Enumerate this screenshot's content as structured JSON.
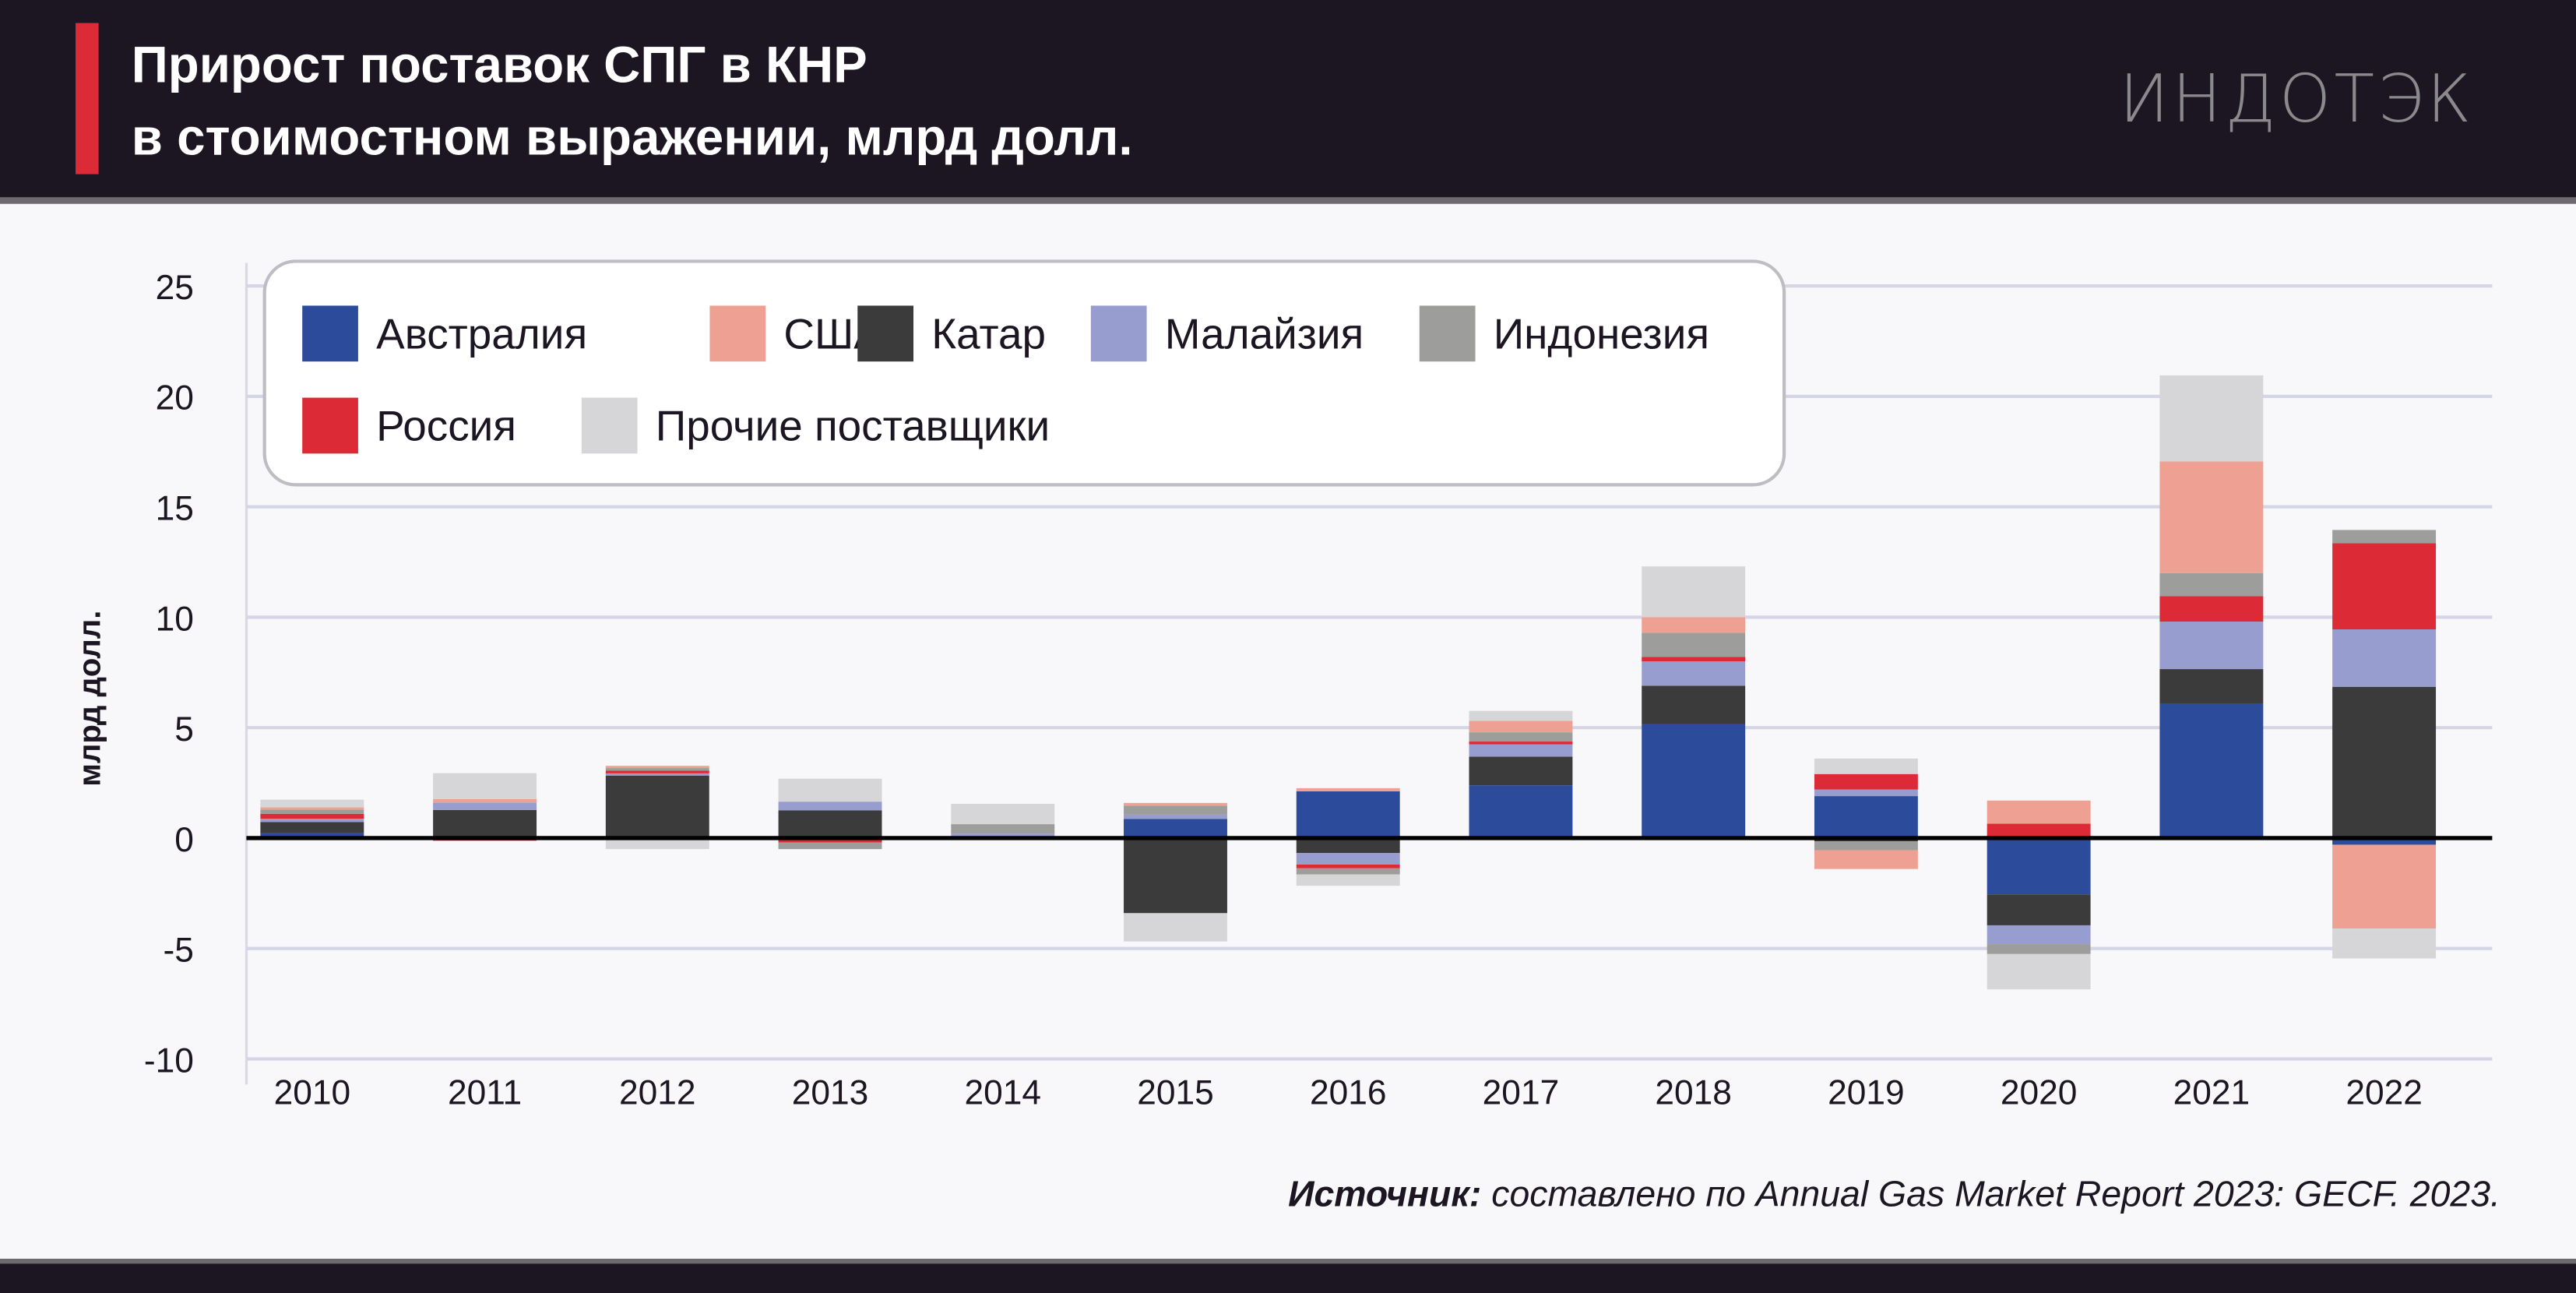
{
  "header": {
    "title_line1": "Прирост поставок СПГ в КНР",
    "title_line2": "в стоимостном выражении, млрд долл.",
    "logo": "ИНДОТЭК"
  },
  "source": {
    "label": "Источник:",
    "text": " составлено по Annual Gas Market Report 2023: GECF. 2023."
  },
  "chart_data": {
    "type": "bar",
    "stacked": true,
    "title": "Прирост поставок СПГ в КНР в стоимостном выражении, млрд долл.",
    "xlabel": "",
    "ylabel": "млрд долл.",
    "ylim": [
      -10,
      25
    ],
    "yticks": [
      -10,
      -5,
      0,
      5,
      10,
      15,
      20,
      25
    ],
    "grid": true,
    "legend_placement": "top-left",
    "categories": [
      "2010",
      "2011",
      "2012",
      "2013",
      "2014",
      "2015",
      "2016",
      "2017",
      "2018",
      "2019",
      "2020",
      "2021",
      "2022"
    ],
    "series": [
      {
        "name": "Австралия",
        "color": "#2d4b9b",
        "values": [
          0.23,
          0.05,
          0,
          0,
          0,
          0.87,
          2.12,
          2.39,
          5.15,
          1.9,
          -2.55,
          6.1,
          -0.3
        ]
      },
      {
        "name": "Катар",
        "color": "#3b3b3b",
        "values": [
          0.5,
          1.22,
          2.83,
          1.25,
          0,
          -3.4,
          -0.68,
          1.3,
          1.75,
          -0.15,
          -1.4,
          1.55,
          6.85
        ]
      },
      {
        "name": "Малайзия",
        "color": "#979ecf",
        "values": [
          0.15,
          0.34,
          0.1,
          0.4,
          0.2,
          0.19,
          -0.52,
          0.55,
          1.1,
          0.3,
          -0.85,
          2.15,
          2.6
        ]
      },
      {
        "name": "Россия",
        "color": "#dc2b37",
        "values": [
          0.22,
          -0.12,
          0.12,
          -0.2,
          0,
          0,
          -0.17,
          0.13,
          0.2,
          0.7,
          0.65,
          1.15,
          3.9
        ]
      },
      {
        "name": "Индонезия",
        "color": "#9d9d9b",
        "values": [
          0.19,
          0,
          0.12,
          -0.3,
          0.43,
          0.41,
          -0.28,
          0.42,
          1.1,
          -0.4,
          -0.45,
          1.05,
          0.6
        ]
      },
      {
        "name": "США",
        "color": "#eea193",
        "values": [
          0.1,
          0.16,
          0.1,
          0,
          0,
          0.12,
          0.14,
          0.52,
          0.7,
          -0.85,
          1.05,
          5.05,
          -3.8
        ]
      },
      {
        "name": "Прочие поставщики",
        "color": "#d6d6d8",
        "values": [
          0.35,
          1.17,
          -0.5,
          1.04,
          0.92,
          -1.28,
          -0.51,
          0.45,
          2.3,
          0.7,
          -1.6,
          3.9,
          -1.35
        ]
      }
    ],
    "legend_order": [
      "Австралия",
      "США",
      "Катар",
      "Малайзия",
      "Индонезия",
      "Россия",
      "Прочие поставщики"
    ]
  }
}
